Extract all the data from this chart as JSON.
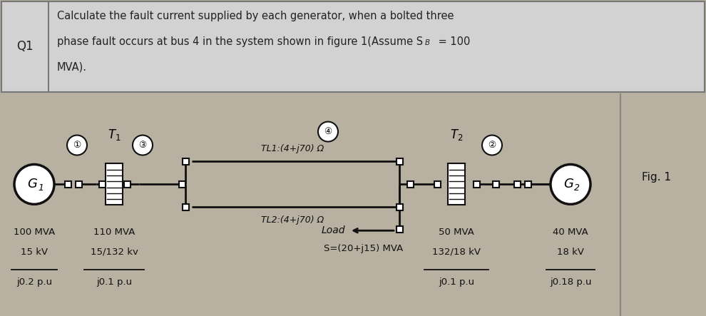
{
  "header_bg": "#d0d0d0",
  "header_border": "#888888",
  "diagram_bg": "#ccc4b0",
  "q1_label": "Q1",
  "question_line1": "Calculate the fault current supplied by each generator, when a bolted three",
  "question_line2": "phase fault occurs at bus 4 in the system shown in figure 1(Assume S",
  "question_line2b": " = 100",
  "question_line3": "MVA).",
  "fig_label": "Fig. 1",
  "tl1_label": "TL1:(4+j70) Ω",
  "tl2_label": "TL2:(4+j70) Ω",
  "load_label": "Load",
  "load_s": "S=(20+j15) MVA",
  "g1_label": "G",
  "g2_label": "G",
  "g1_mva": "100 MVA",
  "g1_kv": "15 kV",
  "g1_pu": "j0.2 p.u",
  "t1_mva": "110 MVA",
  "t1_kv": "15/132 kv",
  "t1_pu": "j0.1 p.u",
  "t2_mva": "50 MVA",
  "t2_kv": "132/18 kV",
  "t2_pu": "j0.1 p.u",
  "g2_mva": "40 MVA",
  "g2_kv": "18 kV",
  "g2_pu": "j0.18 p.u",
  "line_color": "#111111",
  "text_color": "#111111"
}
